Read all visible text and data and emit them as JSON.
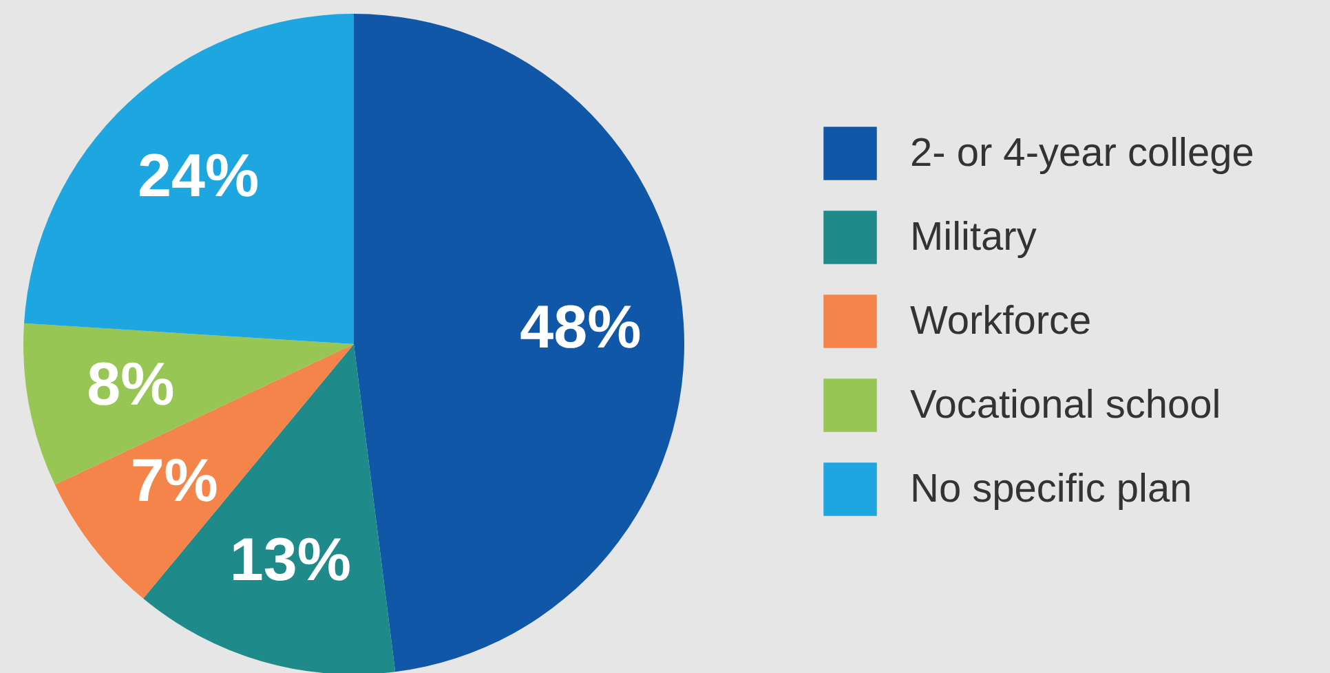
{
  "chart_data": {
    "type": "pie",
    "categories": [
      "2- or 4-year college",
      "Military",
      "Workforce",
      "Vocational school",
      "No specific plan"
    ],
    "values": [
      48,
      13,
      7,
      8,
      24
    ],
    "value_labels": [
      "48%",
      "13%",
      "7%",
      "8%",
      "24%"
    ],
    "colors": [
      "#1057a8",
      "#1e8a8a",
      "#f5844a",
      "#97c654",
      "#1ea6e0"
    ],
    "legend": "right"
  }
}
